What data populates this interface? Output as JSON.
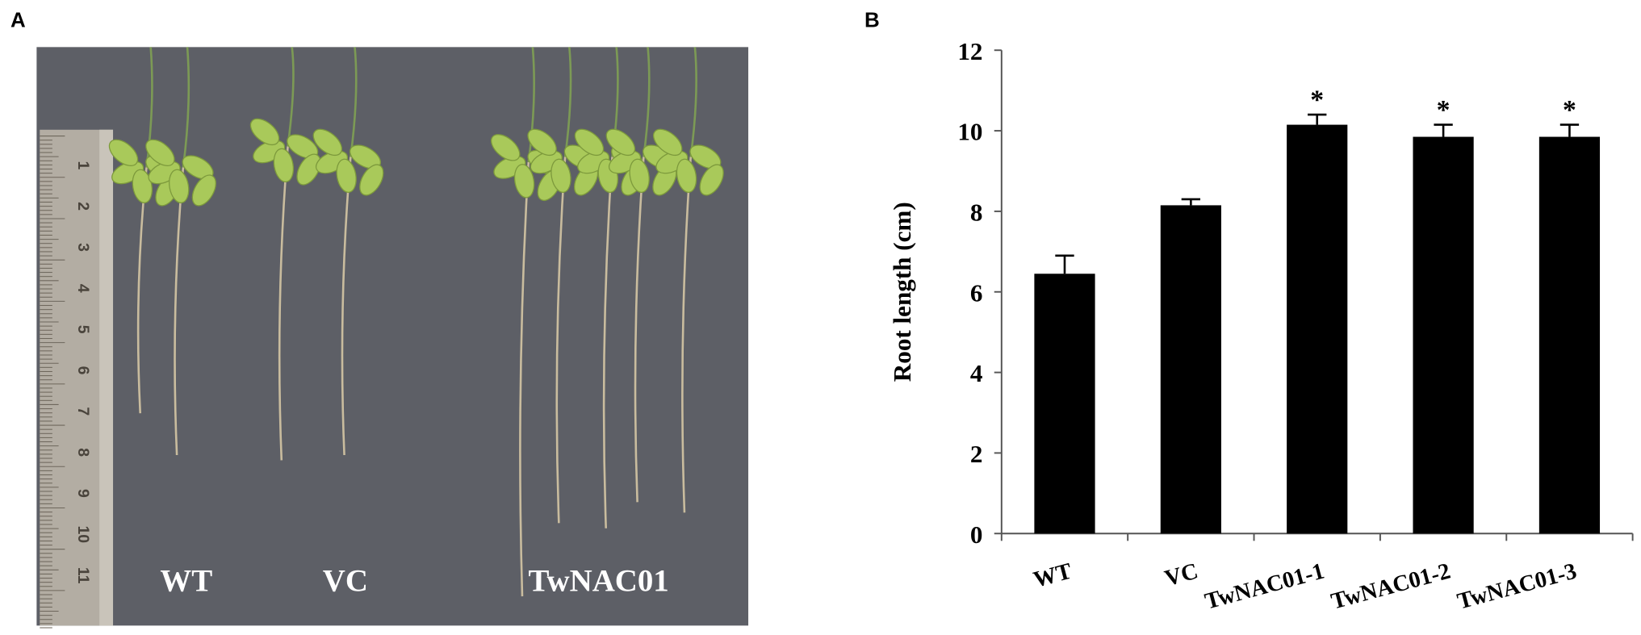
{
  "photo": {
    "panel_label": "A",
    "labels": [
      "WT",
      "VC",
      "TwNAC01"
    ],
    "ruler": [
      "1",
      "2",
      "3",
      "4",
      "5",
      "6",
      "7",
      "8",
      "9",
      "10",
      "11"
    ]
  },
  "chart_data": {
    "type": "bar",
    "panel_label": "B",
    "y_label": "Root length (cm)",
    "categories": [
      "WT",
      "VC",
      "TwNAC01-1",
      "TwNAC01-2",
      "TwNAC01-3"
    ],
    "values": [
      6.45,
      8.15,
      10.15,
      9.85,
      9.85
    ],
    "errors": [
      0.45,
      0.15,
      0.25,
      0.3,
      0.3
    ],
    "annotations": [
      {
        "x": "TwNAC01-1",
        "text": "*"
      },
      {
        "x": "TwNAC01-2",
        "text": "*"
      },
      {
        "x": "TwNAC01-3",
        "text": "*"
      }
    ],
    "color": "#000000",
    "ylim": [
      0,
      12
    ],
    "yticks": [
      0,
      2,
      4,
      6,
      8,
      10,
      12
    ]
  }
}
